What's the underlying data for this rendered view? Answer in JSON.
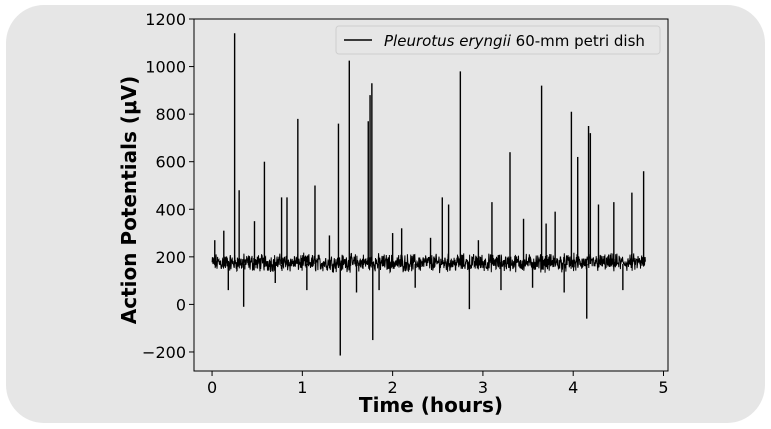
{
  "chart_data": {
    "type": "line",
    "xlabel": "Time (hours)",
    "ylabel": "Action Potentials (μV)",
    "xlim": [
      -0.2,
      5.05
    ],
    "ylim": [
      -280,
      1200
    ],
    "xticks": [
      0,
      1,
      2,
      3,
      4,
      5
    ],
    "yticks": [
      -200,
      0,
      200,
      400,
      600,
      800,
      1000,
      1200
    ],
    "ytick_labels": [
      "−200",
      "0",
      "200",
      "400",
      "600",
      "800",
      "1000",
      "1200"
    ],
    "legend": {
      "position": "top-right",
      "italic_part": "Pleurotus eryngii",
      "plain_part": " 60-mm petri dish"
    },
    "series": [
      {
        "name": "Pleurotus eryngii 60-mm petri dish",
        "color": "#000000",
        "baseline": 170,
        "noise_band": [
          120,
          230
        ],
        "time_range": [
          0,
          4.8
        ],
        "spikes": [
          {
            "x": 0.03,
            "y": 270
          },
          {
            "x": 0.13,
            "y": 310
          },
          {
            "x": 0.18,
            "y": 60
          },
          {
            "x": 0.25,
            "y": 1140
          },
          {
            "x": 0.3,
            "y": 480
          },
          {
            "x": 0.35,
            "y": -10
          },
          {
            "x": 0.47,
            "y": 350
          },
          {
            "x": 0.58,
            "y": 600
          },
          {
            "x": 0.7,
            "y": 90
          },
          {
            "x": 0.77,
            "y": 450
          },
          {
            "x": 0.83,
            "y": 450
          },
          {
            "x": 0.95,
            "y": 780
          },
          {
            "x": 1.05,
            "y": 60
          },
          {
            "x": 1.14,
            "y": 500
          },
          {
            "x": 1.3,
            "y": 290
          },
          {
            "x": 1.4,
            "y": 760
          },
          {
            "x": 1.42,
            "y": -215
          },
          {
            "x": 1.52,
            "y": 1025
          },
          {
            "x": 1.6,
            "y": 50
          },
          {
            "x": 1.73,
            "y": 770
          },
          {
            "x": 1.75,
            "y": 880
          },
          {
            "x": 1.77,
            "y": 930
          },
          {
            "x": 1.78,
            "y": -150
          },
          {
            "x": 1.85,
            "y": 60
          },
          {
            "x": 2.0,
            "y": 300
          },
          {
            "x": 2.1,
            "y": 320
          },
          {
            "x": 2.25,
            "y": 70
          },
          {
            "x": 2.42,
            "y": 280
          },
          {
            "x": 2.55,
            "y": 450
          },
          {
            "x": 2.62,
            "y": 420
          },
          {
            "x": 2.75,
            "y": 980
          },
          {
            "x": 2.85,
            "y": -20
          },
          {
            "x": 2.95,
            "y": 270
          },
          {
            "x": 3.1,
            "y": 430
          },
          {
            "x": 3.2,
            "y": 60
          },
          {
            "x": 3.3,
            "y": 640
          },
          {
            "x": 3.45,
            "y": 360
          },
          {
            "x": 3.55,
            "y": 70
          },
          {
            "x": 3.65,
            "y": 920
          },
          {
            "x": 3.7,
            "y": 340
          },
          {
            "x": 3.8,
            "y": 390
          },
          {
            "x": 3.9,
            "y": 50
          },
          {
            "x": 3.98,
            "y": 810
          },
          {
            "x": 4.05,
            "y": 620
          },
          {
            "x": 4.15,
            "y": -60
          },
          {
            "x": 4.17,
            "y": 750
          },
          {
            "x": 4.19,
            "y": 720
          },
          {
            "x": 4.28,
            "y": 420
          },
          {
            "x": 4.45,
            "y": 430
          },
          {
            "x": 4.55,
            "y": 60
          },
          {
            "x": 4.65,
            "y": 470
          },
          {
            "x": 4.78,
            "y": 560
          }
        ]
      }
    ]
  }
}
